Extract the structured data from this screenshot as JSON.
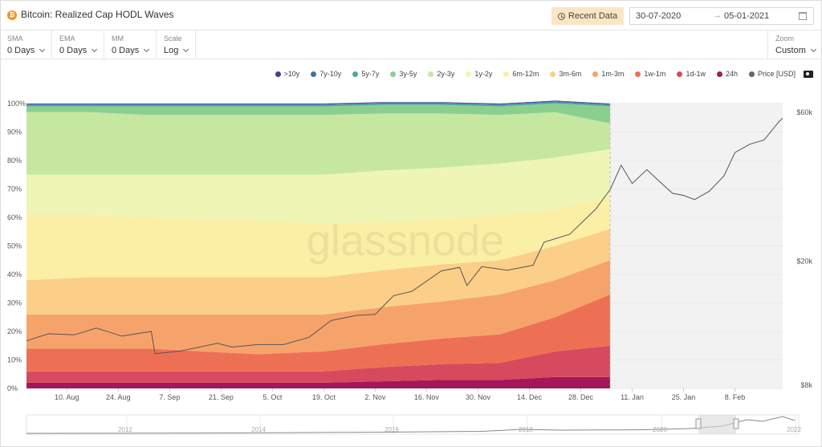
{
  "header": {
    "title": "Bitcoin: Realized Cap HODL Waves",
    "recent_label": "Recent Data",
    "date_from": "30-07-2020",
    "date_arrow": "→",
    "date_to": "05-01-2021"
  },
  "controls": [
    {
      "label": "SMA",
      "value": "0 Days"
    },
    {
      "label": "EMA",
      "value": "0 Days"
    },
    {
      "label": "MM",
      "value": "0 Days"
    },
    {
      "label": "Scale",
      "value": "Log"
    }
  ],
  "zoom": {
    "label": "Zoom",
    "value": "Custom"
  },
  "watermark": "glassnode",
  "legend": [
    {
      "name": ">10y",
      "color": "#4a3f8f"
    },
    {
      "name": "7y-10y",
      "color": "#3f6fa8"
    },
    {
      "name": "5y-7y",
      "color": "#4aab9b"
    },
    {
      "name": "3y-5y",
      "color": "#8bcf8f"
    },
    {
      "name": "2y-3y",
      "color": "#c6e7a0"
    },
    {
      "name": "1y-2y",
      "color": "#eef5b5"
    },
    {
      "name": "6m-12m",
      "color": "#fbefa6"
    },
    {
      "name": "3m-6m",
      "color": "#fbcf88"
    },
    {
      "name": "1m-3m",
      "color": "#f6a36b"
    },
    {
      "name": "1w-1m",
      "color": "#ee7054"
    },
    {
      "name": "1d-1w",
      "color": "#d74a5e"
    },
    {
      "name": "24h",
      "color": "#a3185a"
    },
    {
      "name": "Price [USD]",
      "color": "#666666"
    }
  ],
  "chart_data": {
    "type": "area",
    "stacked": true,
    "y_left_ticks": [
      "0%",
      "10%",
      "20%",
      "30%",
      "40%",
      "50%",
      "60%",
      "70%",
      "80%",
      "90%",
      "100%"
    ],
    "y_right_ticks": [
      {
        "label": "$8k",
        "value": 8000
      },
      {
        "label": "$20k",
        "value": 20000
      },
      {
        "label": "$60k",
        "value": 60000
      }
    ],
    "y_right_scale": "log",
    "x_ticks": [
      "10. Aug",
      "24. Aug",
      "7. Sep",
      "21. Sep",
      "5. Oct",
      "19. Oct",
      "2. Nov",
      "16. Nov",
      "30. Nov",
      "14. Dec",
      "28. Dec",
      "11. Jan",
      "25. Jan",
      "8. Feb"
    ],
    "x_tick_dates": [
      "2020-08-10",
      "2020-08-24",
      "2020-09-07",
      "2020-09-21",
      "2020-10-05",
      "2020-10-19",
      "2020-11-02",
      "2020-11-16",
      "2020-11-30",
      "2020-12-14",
      "2020-12-28",
      "2021-01-11",
      "2021-01-25",
      "2021-02-08"
    ],
    "x_range": [
      "2020-07-30",
      "2021-02-21"
    ],
    "band_end_date": "2021-01-05",
    "sample_dates": [
      "2020-07-30",
      "2020-08-16",
      "2020-09-01",
      "2020-09-16",
      "2020-10-01",
      "2020-10-19",
      "2020-11-04",
      "2020-11-20",
      "2020-12-06",
      "2020-12-21",
      "2021-01-05"
    ],
    "series": [
      {
        "name": "24h",
        "values": [
          2,
          2,
          2,
          2,
          2,
          2,
          2.5,
          3,
          3,
          4,
          4
        ]
      },
      {
        "name": "1d-1w",
        "values": [
          4,
          4,
          4,
          4,
          4,
          4,
          5,
          5.5,
          6,
          9,
          11
        ]
      },
      {
        "name": "1w-1m",
        "values": [
          8,
          8,
          8,
          7,
          6,
          7,
          8,
          9,
          10,
          12,
          18
        ]
      },
      {
        "name": "1m-3m",
        "values": [
          12,
          12,
          12,
          13,
          14,
          13,
          13,
          13,
          14,
          13,
          12
        ]
      },
      {
        "name": "3m-6m",
        "values": [
          12,
          13,
          13,
          13,
          13,
          13,
          13,
          13,
          12,
          12,
          11
        ]
      },
      {
        "name": "6m-12m",
        "values": [
          23,
          22,
          21,
          20,
          20,
          19,
          17,
          16,
          16,
          13,
          11
        ]
      },
      {
        "name": "1y-2y",
        "values": [
          14,
          14,
          15,
          16,
          16,
          17,
          18,
          18,
          18,
          18,
          17
        ]
      },
      {
        "name": "2y-3y",
        "values": [
          22,
          22,
          21,
          21,
          21,
          21,
          20,
          19,
          17,
          16,
          9
        ]
      },
      {
        "name": "3y-5y",
        "values": [
          2,
          2,
          3,
          3,
          3,
          3,
          3,
          3,
          3,
          3,
          6
        ]
      },
      {
        "name": "5y-7y",
        "values": [
          0.5,
          0.5,
          0.5,
          0.5,
          0.5,
          0.5,
          0.5,
          0.5,
          0.5,
          0.5,
          0.5
        ]
      },
      {
        "name": "7y-10y",
        "values": [
          0.3,
          0.3,
          0.3,
          0.3,
          0.3,
          0.3,
          0.3,
          0.3,
          0.3,
          0.3,
          0.3
        ]
      },
      {
        "name": ">10y",
        "values": [
          0.2,
          0.2,
          0.2,
          0.2,
          0.2,
          0.2,
          0.2,
          0.2,
          0.2,
          0.2,
          0.2
        ]
      }
    ],
    "price": {
      "name": "Price [USD]",
      "dates": [
        "2020-07-30",
        "2020-08-05",
        "2020-08-12",
        "2020-08-18",
        "2020-08-25",
        "2020-09-02",
        "2020-09-03",
        "2020-09-10",
        "2020-09-20",
        "2020-09-24",
        "2020-10-01",
        "2020-10-08",
        "2020-10-15",
        "2020-10-21",
        "2020-10-28",
        "2020-11-02",
        "2020-11-07",
        "2020-11-12",
        "2020-11-20",
        "2020-11-25",
        "2020-11-27",
        "2020-12-01",
        "2020-12-08",
        "2020-12-15",
        "2020-12-18",
        "2020-12-25",
        "2021-01-01",
        "2021-01-05",
        "2021-01-08",
        "2021-01-11",
        "2021-01-15",
        "2021-01-18",
        "2021-01-22",
        "2021-01-25",
        "2021-01-28",
        "2021-02-01",
        "2021-02-05",
        "2021-02-08",
        "2021-02-12",
        "2021-02-16",
        "2021-02-20",
        "2021-02-21"
      ],
      "values": [
        11100,
        11700,
        11600,
        12200,
        11500,
        11900,
        10100,
        10300,
        10900,
        10600,
        10800,
        10800,
        11400,
        12900,
        13400,
        13500,
        15500,
        16000,
        18600,
        19100,
        16700,
        19200,
        18700,
        19400,
        23000,
        24400,
        29300,
        33900,
        40600,
        35500,
        39300,
        36400,
        33000,
        32500,
        31500,
        33500,
        37500,
        44600,
        47400,
        49000,
        56000,
        57500
      ]
    }
  }
}
